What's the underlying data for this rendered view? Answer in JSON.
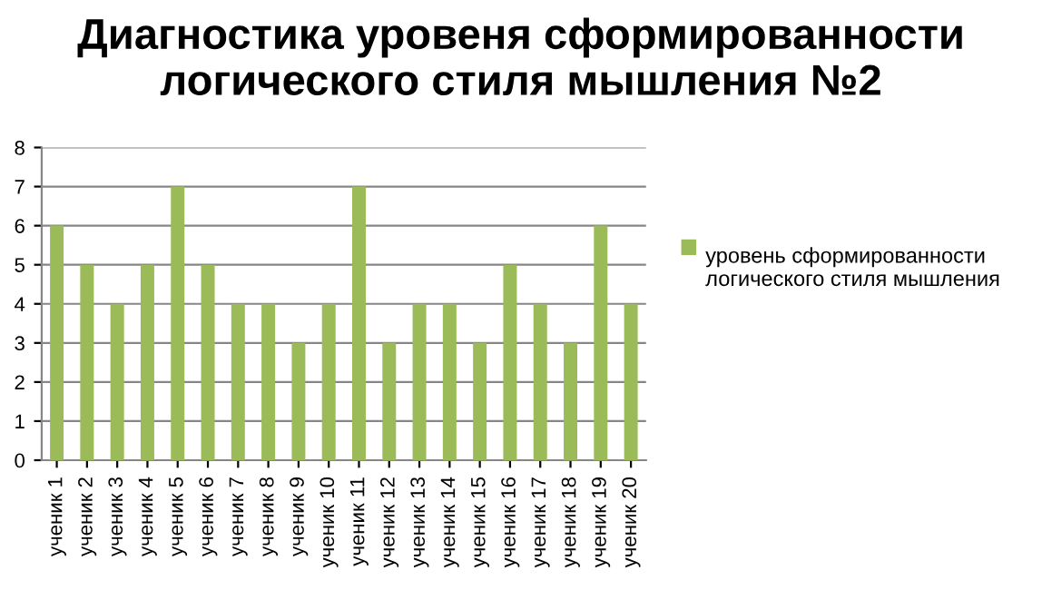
{
  "chart_data": {
    "type": "bar",
    "title": "Диагностика уровеня сформированности\nлогического стиля мышления №2",
    "categories": [
      "ученик 1",
      "ученик 2",
      "ученик 3",
      "ученик 4",
      "ученик 5",
      "ученик 6",
      "ученик 7",
      "ученик 8",
      "ученик 9",
      "ученик 10",
      "ученик 11",
      "ученик 12",
      "ученик 13",
      "ученик 14",
      "ученик 15",
      "ученик 16",
      "ученик 17",
      "ученик 18",
      "ученик 19",
      "ученик 20"
    ],
    "series": [
      {
        "name": "уровень сформированности логического стиля мышления",
        "color": "#9bbb59",
        "values": [
          6,
          5,
          4,
          5,
          7,
          5,
          4,
          4,
          3,
          4,
          7,
          3,
          4,
          4,
          3,
          5,
          4,
          3,
          6,
          4
        ]
      }
    ],
    "ylim": [
      0,
      8
    ],
    "yticks": [
      0,
      1,
      2,
      3,
      4,
      5,
      6,
      7,
      8
    ],
    "grid": "y",
    "legend": "right"
  }
}
